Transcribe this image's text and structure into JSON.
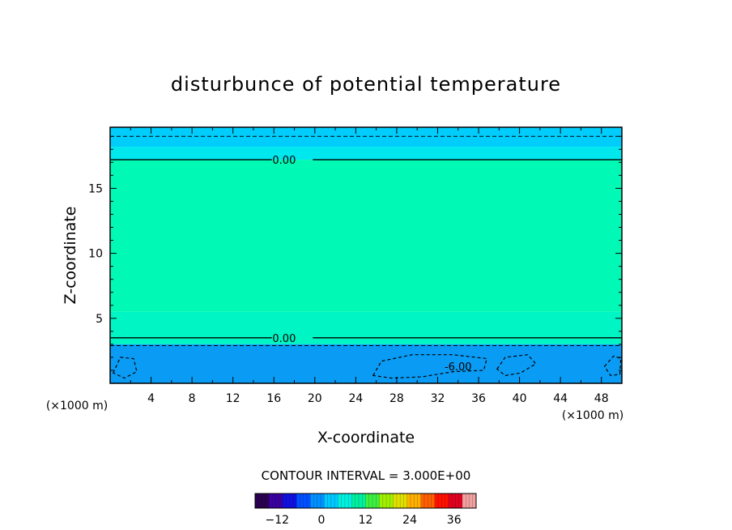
{
  "chart_data": {
    "type": "heatmap",
    "title": "disturbunce of potential temperature",
    "xlabel": "X-coordinate",
    "ylabel": "Z-coordinate",
    "x_unit": "(×1000 m)",
    "x_unit_right": "(×1000 m)",
    "xlim": [
      0,
      50
    ],
    "ylim": [
      0,
      19.7
    ],
    "x_ticks": [
      4,
      8,
      12,
      16,
      20,
      24,
      28,
      32,
      36,
      40,
      44,
      48
    ],
    "y_ticks": [
      5,
      10,
      15
    ],
    "contour_interval_text": "CONTOUR INTERVAL = 3.000E+00",
    "contour_labels": [
      {
        "text": "0.00",
        "x": 17.0,
        "z": 17.2
      },
      {
        "text": "0.00",
        "x": 17.0,
        "z": 3.5
      },
      {
        "text": "-6.00",
        "x": 34.0,
        "z": 1.3
      }
    ],
    "bands": [
      {
        "z_min": 18.2,
        "z_max": 19.7,
        "color": "#00cdfc"
      },
      {
        "z_min": 17.2,
        "z_max": 18.2,
        "color": "#00e8ee"
      },
      {
        "z_min": 5.5,
        "z_max": 17.2,
        "color": "#00f9b4"
      },
      {
        "z_min": 3.0,
        "z_max": 5.5,
        "color": "#00f5c4"
      },
      {
        "z_min": 0.0,
        "z_max": 3.0,
        "color": "#0a9cf5"
      }
    ],
    "colorbar": {
      "range": [
        -18,
        42
      ],
      "ticks": [
        -12,
        0,
        12,
        24,
        36
      ],
      "colors": [
        "#2a0050",
        "#3a00a0",
        "#1010e0",
        "#0050ff",
        "#0090ff",
        "#00c8ff",
        "#00f0e0",
        "#00f0a0",
        "#40f040",
        "#a0f000",
        "#e0e000",
        "#ffb000",
        "#ff6000",
        "#ff1000",
        "#e00020",
        "#f0a0a0"
      ]
    }
  }
}
